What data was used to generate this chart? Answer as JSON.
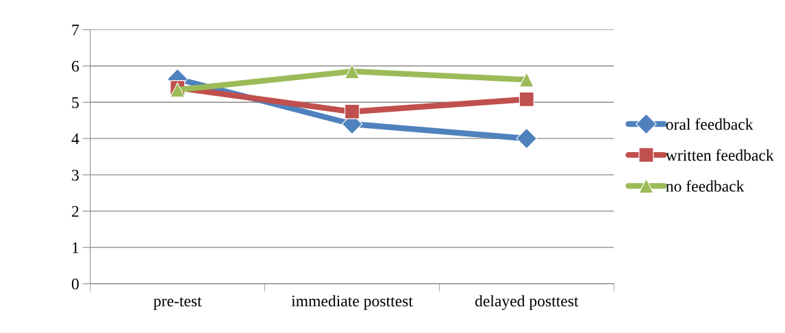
{
  "chart_data": {
    "type": "line",
    "categories": [
      "pre-test",
      "immediate posttest",
      "delayed posttest"
    ],
    "series": [
      {
        "name": "oral feedback",
        "color": "#4f81bd",
        "marker": "diamond",
        "values": [
          5.64,
          4.4,
          4.0
        ]
      },
      {
        "name": "written feedback",
        "color": "#c0504d",
        "marker": "square",
        "values": [
          5.4,
          4.74,
          5.08
        ]
      },
      {
        "name": "no feedback",
        "color": "#9bbb59",
        "marker": "triangle",
        "values": [
          5.34,
          5.85,
          5.62
        ]
      }
    ],
    "ylim": [
      0,
      7
    ],
    "yticks": [
      0,
      1,
      2,
      3,
      4,
      5,
      6,
      7
    ],
    "grid": "y",
    "legend": "right"
  }
}
